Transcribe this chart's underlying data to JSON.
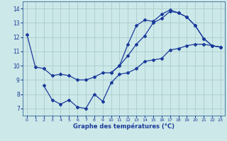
{
  "xlabel": "Graphe des températures (°C)",
  "bg_color": "#cce8e8",
  "grid_color": "#aacccc",
  "line_color": "#1a3a9a",
  "ylim": [
    6.5,
    14.5
  ],
  "xlim": [
    -0.5,
    23.5
  ],
  "series1_x": [
    0,
    1,
    2,
    3,
    4,
    5,
    6,
    7,
    8,
    9,
    10,
    11,
    12,
    13,
    14,
    15,
    16,
    17,
    18,
    19,
    20,
    21,
    22,
    23
  ],
  "series1_y": [
    12.2,
    9.9,
    9.8,
    9.3,
    9.4,
    9.3,
    9.0,
    9.0,
    9.2,
    9.5,
    9.5,
    10.0,
    10.7,
    11.5,
    12.1,
    13.0,
    13.3,
    13.8,
    13.7,
    13.4,
    12.8,
    11.9,
    11.4,
    11.3
  ],
  "series2_x": [
    2,
    3,
    4,
    5,
    6,
    7,
    8,
    9,
    10,
    11,
    12,
    13,
    14,
    15,
    16,
    17,
    18,
    19,
    20,
    21,
    22,
    23
  ],
  "series2_y": [
    8.6,
    7.6,
    7.3,
    7.6,
    7.1,
    7.0,
    8.0,
    7.5,
    8.8,
    9.4,
    9.5,
    9.8,
    10.3,
    10.4,
    10.5,
    11.1,
    11.2,
    11.4,
    11.5,
    11.5,
    11.4,
    11.3
  ],
  "series3_x": [
    10,
    11,
    12,
    13,
    14,
    15,
    16,
    17,
    18,
    19,
    20,
    21,
    22,
    23
  ],
  "series3_y": [
    9.5,
    10.0,
    11.5,
    12.8,
    13.2,
    13.1,
    13.6,
    13.9,
    13.7,
    13.4,
    12.8,
    11.9,
    11.4,
    11.3
  ],
  "yticks": [
    7,
    8,
    9,
    10,
    11,
    12,
    13,
    14
  ],
  "xticks": [
    0,
    1,
    2,
    3,
    4,
    5,
    6,
    7,
    8,
    9,
    10,
    11,
    12,
    13,
    14,
    15,
    16,
    17,
    18,
    19,
    20,
    21,
    22,
    23
  ]
}
